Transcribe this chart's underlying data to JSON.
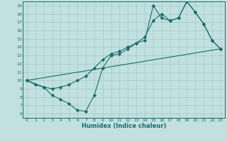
{
  "bg_color": "#c2e0e0",
  "grid_color": "#a8cccc",
  "line_color": "#1a6b6b",
  "xlabel": "Humidex (Indice chaleur)",
  "xlim": [
    -0.5,
    23.5
  ],
  "ylim": [
    5.5,
    19.5
  ],
  "xticks": [
    0,
    1,
    2,
    3,
    4,
    5,
    6,
    7,
    8,
    9,
    10,
    11,
    12,
    13,
    14,
    15,
    16,
    17,
    18,
    19,
    20,
    21,
    22,
    23
  ],
  "yticks": [
    6,
    7,
    8,
    9,
    10,
    11,
    12,
    13,
    14,
    15,
    16,
    17,
    18,
    19
  ],
  "line1_x": [
    0,
    1,
    2,
    3,
    4,
    5,
    6,
    7,
    8,
    9,
    10,
    11,
    12,
    13,
    14,
    15,
    16,
    17,
    18,
    19,
    20,
    21,
    22,
    23
  ],
  "line1_y": [
    10.0,
    9.5,
    9.2,
    8.2,
    7.7,
    7.2,
    6.4,
    6.3,
    8.2,
    11.5,
    13.0,
    13.2,
    13.8,
    14.5,
    14.8,
    19.0,
    17.5,
    17.2,
    17.5,
    19.5,
    18.2,
    16.8,
    14.8,
    13.8
  ],
  "line2_x": [
    0,
    2,
    3,
    4,
    5,
    6,
    7,
    8,
    9,
    10,
    11,
    12,
    13,
    14,
    15,
    16,
    17,
    18,
    19,
    20,
    21,
    22,
    23
  ],
  "line2_y": [
    10.0,
    9.2,
    9.0,
    9.2,
    9.5,
    10.0,
    10.5,
    11.5,
    12.5,
    13.2,
    13.5,
    14.0,
    14.5,
    15.2,
    17.2,
    18.0,
    17.2,
    17.5,
    19.5,
    18.2,
    16.8,
    14.8,
    13.8
  ],
  "line3_x": [
    0,
    23
  ],
  "line3_y": [
    10.0,
    13.8
  ],
  "marker": "D",
  "markersize": 1.8,
  "linewidth": 0.8,
  "tick_fontsize": 4.5,
  "xlabel_fontsize": 6.0,
  "tick_color": "#1a6b6b",
  "xlabel_color": "#1a6b6b",
  "spine_color": "#1a6b6b"
}
